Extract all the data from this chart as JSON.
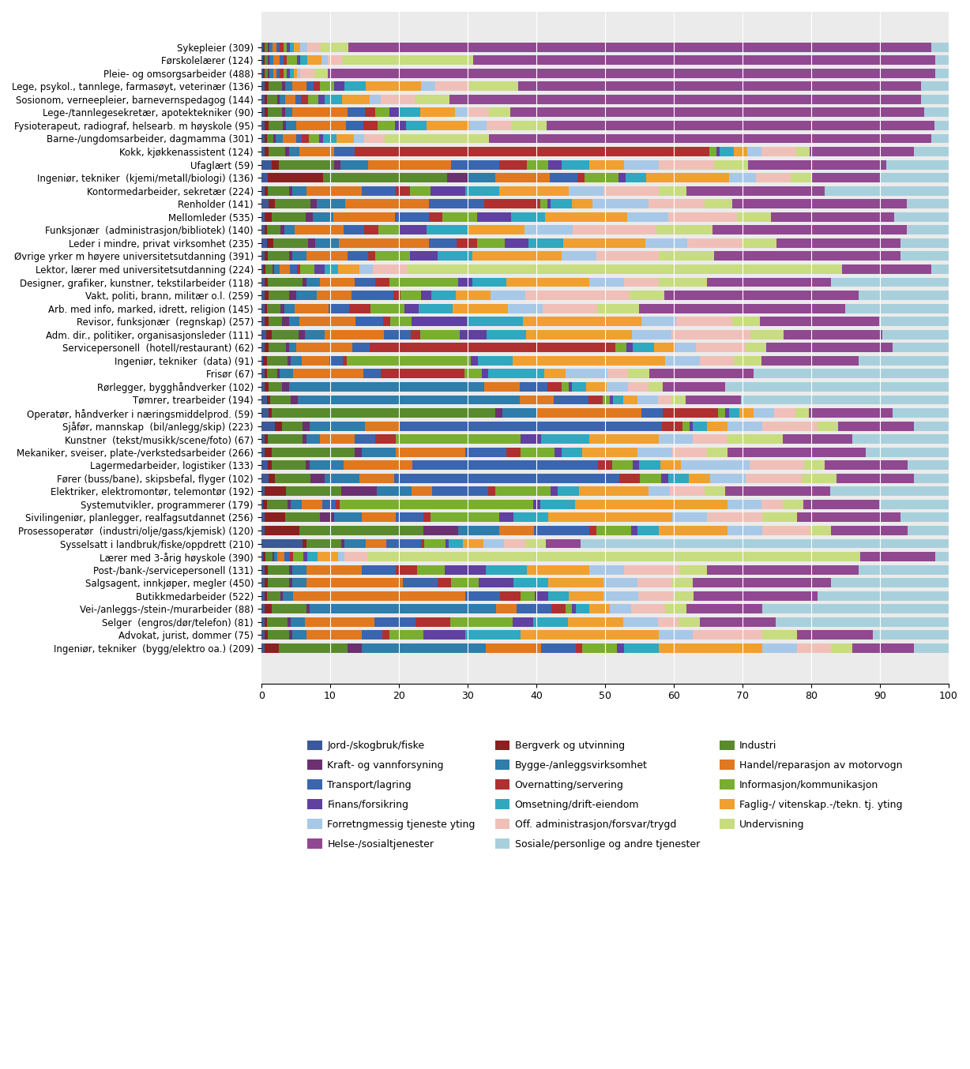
{
  "categories": [
    "Sykepleier (309)",
    "Førskolelærer (124)",
    "Pleie- og omsorgsarbeider (488)",
    "Lege, psykol., tannlege, farmasøyt, veterinær (136)",
    "Sosionom, verneepleier, barnevernspedagog (144)",
    "Lege-/tannlegesekretær, apotektekniker (90)",
    "Fysioterapeut, radiograf, helsearb. m høyskole (95)",
    "Barne-/ungdomsarbeider, dagmamma (301)",
    "Kokk, kjøkkenassistent (124)",
    "Ufaglært (59)",
    "Ingeniør, tekniker  (kjemi/metall/biologi) (136)",
    "Kontormedarbeider, sekretær (224)",
    "Renholder (141)",
    "Mellomleder (535)",
    "Funksjonær  (administrasjon/bibliotek) (140)",
    "Leder i mindre, privat virksomhet (235)",
    "Øvrige yrker m høyere universitetsutdanning (391)",
    "Lektor, lærer med universitetsutdanning (224)",
    "Designer, grafiker, kunstner, tekstilarbeider (118)",
    "Vakt, politi, brann, militær o.l. (259)",
    "Arb. med info, marked, idrett, religion (145)",
    "Revisor, funksjonær  (regnskap) (257)",
    "Adm. dir., politiker, organisasjonsleder (111)",
    "Servicepersonell  (hotell/restaurant) (62)",
    "Ingeniør, tekniker  (data) (91)",
    "Frisør (67)",
    "Rørlegger, bygghåndverker (102)",
    "Tømrer, trearbeider (194)",
    "Operatør, håndverker i næringsmiddelprod. (59)",
    "Sjåfør, mannskap  (bil/anlegg/skip) (223)",
    "Kunstner  (tekst/musikk/scene/foto) (67)",
    "Mekaniker, sveiser, plate-/verkstedsarbeider (266)",
    "Lagermedarbeider, logistiker (133)",
    "Fører (buss/bane), skipsbefal, flyger (102)",
    "Elektriker, elektromontør, telemontør (192)",
    "Systemutvikler, programmerer (179)",
    "Sivilingeniør, planlegger, realfagsutdannet (256)",
    "Prosessoperatør  (industri/olje/gass/kjemisk) (120)",
    "Sysselsatt i landbruk/fiske/oppdrett (210)",
    "Lærer med 3-årig høyskole (390)",
    "Post-/bank-/servicepersonell (131)",
    "Salgsagent, innkjøper, megler (450)",
    "Butikkmedarbeider (522)",
    "Vei-/anleggs-/stein-/murarbeider (88)",
    "Selger  (engros/dør/telefon) (81)",
    "Advokat, jurist, dommer (75)",
    "Ingeniør, tekniker  (bygg/elektro oa.) (209)"
  ],
  "sectors": [
    "Jord-/skogbruk/fiske",
    "Bergverk og utvinning",
    "Industri",
    "Kraft- og vannforsyning",
    "Bygge-/anleggsvirksomhet",
    "Handel/reparasjon av motorvogn",
    "Transport/lagring",
    "Overnatting/servering",
    "Informasjon/kommunikasjon",
    "Finans/forsikring",
    "Omsetning/drift-eiendom",
    "Faglig-/ vitenskap.-/tekn. tj. yting",
    "Forretngmessig tjeneste yting",
    "Off. administrasjon/forsvar/trygd",
    "Undervisning",
    "Helse-/sosialtjenester",
    "Sosiale/personlige og andre tjenester"
  ],
  "colors": [
    "#3B5998",
    "#8B2020",
    "#5A8A2E",
    "#6B3070",
    "#2E7DAA",
    "#E07820",
    "#3A66B0",
    "#B03030",
    "#7AAE30",
    "#6040A0",
    "#30A8C0",
    "#F0A030",
    "#A8C8E8",
    "#F0C0B8",
    "#C8DC80",
    "#904890",
    "#A8D0DC"
  ],
  "legend_order": [
    [
      0,
      3,
      6,
      9,
      12,
      15
    ],
    [
      1,
      4,
      7,
      10,
      13,
      16
    ],
    [
      2,
      5,
      8,
      11,
      14
    ]
  ],
  "data": [
    [
      0.3,
      0.2,
      0.5,
      0.2,
      0.5,
      0.5,
      0.5,
      0.5,
      0.5,
      0.5,
      0.5,
      1.0,
      1.0,
      2.0,
      4.0,
      85.0,
      2.5
    ],
    [
      0.3,
      0.2,
      0.5,
      0.2,
      0.5,
      1.0,
      0.5,
      0.5,
      1.5,
      0.5,
      1.0,
      2.0,
      1.0,
      2.0,
      19.0,
      67.0,
      2.0
    ],
    [
      0.3,
      0.2,
      0.5,
      0.2,
      0.5,
      0.5,
      0.5,
      0.5,
      0.5,
      0.5,
      0.5,
      0.5,
      0.5,
      2.0,
      2.0,
      88.0,
      2.0
    ],
    [
      0.5,
      0.5,
      2.0,
      0.5,
      1.0,
      2.0,
      1.0,
      1.0,
      2.0,
      1.5,
      3.0,
      8.0,
      2.0,
      5.0,
      7.0,
      58.0,
      4.0
    ],
    [
      0.5,
      0.3,
      1.5,
      0.3,
      0.8,
      1.5,
      0.8,
      1.0,
      1.5,
      1.0,
      2.5,
      4.0,
      1.5,
      5.0,
      5.0,
      68.0,
      4.0
    ],
    [
      0.5,
      0.5,
      2.0,
      0.5,
      1.0,
      8.0,
      2.5,
      1.5,
      2.0,
      1.5,
      3.0,
      5.0,
      2.0,
      3.0,
      3.0,
      60.0,
      3.5
    ],
    [
      0.5,
      0.5,
      2.0,
      0.5,
      1.5,
      7.0,
      2.5,
      2.0,
      2.5,
      1.5,
      3.0,
      6.0,
      2.5,
      3.5,
      5.0,
      55.0,
      2.0
    ],
    [
      0.5,
      0.3,
      1.0,
      0.3,
      1.0,
      2.0,
      0.8,
      1.0,
      1.5,
      0.5,
      2.0,
      2.5,
      1.5,
      3.0,
      15.0,
      64.0,
      2.5
    ],
    [
      0.5,
      0.5,
      2.5,
      0.5,
      1.5,
      5.0,
      3.0,
      51.0,
      1.0,
      0.5,
      2.0,
      2.0,
      2.0,
      5.0,
      2.0,
      15.0,
      5.0
    ],
    [
      1.5,
      1.0,
      8.0,
      1.0,
      4.0,
      12.0,
      7.0,
      4.0,
      3.0,
      2.0,
      4.0,
      5.0,
      5.0,
      8.0,
      5.0,
      20.0,
      9.0
    ],
    [
      1.0,
      8.0,
      18.0,
      3.0,
      4.0,
      8.0,
      4.0,
      1.0,
      5.0,
      1.0,
      3.0,
      12.0,
      4.0,
      5.0,
      3.0,
      10.0,
      10.0
    ],
    [
      0.5,
      0.5,
      3.0,
      0.5,
      2.0,
      8.0,
      5.0,
      2.0,
      3.0,
      5.0,
      5.0,
      10.0,
      5.0,
      8.0,
      4.0,
      20.0,
      18.0
    ],
    [
      1.0,
      1.0,
      5.0,
      1.0,
      4.0,
      12.0,
      8.0,
      8.0,
      1.0,
      0.5,
      3.0,
      3.0,
      8.0,
      8.0,
      4.0,
      25.0,
      6.0
    ],
    [
      0.5,
      1.0,
      5.0,
      1.0,
      3.0,
      9.0,
      5.0,
      2.0,
      5.0,
      5.0,
      5.0,
      12.0,
      6.0,
      10.0,
      5.0,
      18.0,
      8.0
    ],
    [
      0.5,
      0.3,
      2.0,
      0.5,
      1.5,
      7.0,
      3.0,
      2.0,
      3.0,
      4.0,
      6.0,
      8.0,
      7.0,
      12.0,
      8.0,
      28.0,
      6.0
    ],
    [
      0.8,
      1.0,
      5.0,
      1.0,
      3.5,
      13.0,
      4.0,
      3.0,
      4.0,
      3.5,
      5.0,
      12.0,
      6.0,
      8.0,
      5.0,
      18.0,
      7.0
    ],
    [
      0.5,
      0.5,
      3.0,
      0.5,
      2.0,
      6.0,
      3.0,
      1.0,
      5.0,
      4.0,
      5.0,
      13.0,
      5.0,
      9.0,
      8.0,
      27.0,
      7.0
    ],
    [
      0.3,
      0.3,
      1.0,
      0.3,
      0.8,
      1.5,
      1.0,
      0.5,
      2.0,
      1.5,
      2.0,
      3.0,
      2.0,
      5.0,
      63.0,
      13.0,
      2.5
    ],
    [
      0.5,
      0.5,
      5.0,
      0.5,
      2.0,
      5.0,
      3.0,
      2.0,
      10.0,
      2.0,
      5.0,
      12.0,
      5.0,
      5.0,
      7.0,
      18.0,
      17.0
    ],
    [
      0.5,
      0.5,
      3.0,
      1.0,
      3.0,
      5.0,
      6.0,
      1.0,
      3.0,
      1.5,
      3.5,
      5.0,
      5.0,
      15.0,
      5.0,
      28.0,
      13.0
    ],
    [
      0.5,
      0.3,
      2.0,
      0.5,
      1.5,
      5.0,
      3.0,
      3.0,
      5.0,
      2.0,
      5.0,
      8.0,
      5.0,
      8.0,
      6.0,
      30.0,
      15.0
    ],
    [
      0.5,
      0.5,
      2.0,
      1.0,
      1.5,
      8.0,
      4.0,
      1.0,
      3.0,
      8.0,
      8.0,
      17.0,
      5.0,
      8.0,
      4.0,
      17.0,
      10.0
    ],
    [
      0.8,
      0.8,
      4.0,
      1.0,
      3.0,
      9.0,
      4.0,
      1.5,
      6.0,
      4.0,
      6.0,
      16.0,
      6.0,
      12.0,
      5.0,
      15.0,
      10.0
    ],
    [
      0.5,
      0.5,
      2.5,
      0.5,
      1.0,
      8.0,
      2.5,
      35.0,
      1.5,
      1.0,
      3.0,
      3.0,
      3.0,
      7.0,
      3.0,
      18.0,
      8.0
    ],
    [
      0.3,
      0.5,
      3.0,
      0.5,
      1.5,
      4.0,
      2.0,
      0.5,
      18.0,
      1.0,
      5.0,
      22.0,
      5.0,
      5.0,
      4.0,
      14.0,
      13.0
    ],
    [
      0.5,
      0.3,
      1.5,
      0.3,
      2.0,
      10.0,
      2.5,
      12.0,
      2.5,
      1.0,
      8.0,
      3.0,
      6.0,
      3.0,
      3.0,
      15.0,
      28.0
    ],
    [
      0.5,
      0.5,
      2.0,
      1.0,
      28.0,
      5.0,
      4.0,
      2.0,
      1.0,
      0.5,
      2.0,
      3.0,
      3.0,
      3.0,
      2.0,
      9.0,
      32.0
    ],
    [
      0.8,
      0.5,
      3.0,
      1.0,
      32.0,
      5.0,
      5.0,
      2.0,
      1.0,
      0.5,
      1.5,
      2.0,
      3.0,
      2.0,
      2.0,
      8.0,
      30.0
    ],
    [
      1.0,
      0.5,
      32.0,
      1.0,
      5.0,
      15.0,
      3.0,
      8.0,
      1.0,
      0.5,
      1.5,
      2.0,
      3.0,
      3.0,
      2.0,
      12.0,
      8.0
    ],
    [
      2.0,
      1.0,
      3.0,
      1.0,
      8.0,
      5.0,
      38.0,
      3.0,
      1.0,
      0.5,
      2.0,
      3.0,
      5.0,
      8.0,
      3.0,
      11.0,
      5.0
    ],
    [
      0.5,
      0.5,
      5.0,
      0.5,
      2.0,
      5.0,
      3.0,
      3.0,
      18.0,
      3.0,
      7.0,
      10.0,
      5.0,
      5.0,
      8.0,
      10.0,
      14.0
    ],
    [
      0.5,
      1.0,
      12.0,
      1.0,
      5.0,
      10.0,
      6.0,
      2.0,
      5.0,
      1.0,
      3.0,
      8.0,
      5.0,
      5.0,
      3.0,
      20.0,
      12.0
    ],
    [
      1.0,
      0.5,
      5.0,
      0.5,
      5.0,
      10.0,
      27.0,
      2.0,
      3.0,
      1.0,
      3.0,
      3.0,
      10.0,
      8.0,
      3.0,
      12.0,
      6.0
    ],
    [
      1.0,
      1.0,
      5.0,
      2.0,
      5.0,
      5.0,
      32.0,
      3.0,
      3.0,
      1.0,
      3.0,
      3.0,
      5.0,
      8.0,
      5.0,
      11.0,
      5.0
    ],
    [
      0.5,
      3.0,
      8.0,
      5.0,
      5.0,
      3.0,
      8.0,
      1.0,
      8.0,
      1.0,
      3.0,
      10.0,
      3.0,
      5.0,
      3.0,
      15.0,
      17.0
    ],
    [
      0.3,
      0.5,
      3.0,
      0.5,
      1.5,
      3.0,
      2.0,
      0.5,
      28.0,
      1.0,
      5.0,
      22.0,
      5.0,
      3.0,
      3.0,
      11.0,
      10.0
    ],
    [
      0.5,
      3.0,
      5.0,
      2.0,
      4.0,
      5.0,
      4.0,
      1.0,
      10.0,
      2.0,
      5.0,
      18.0,
      5.0,
      8.0,
      5.0,
      15.0,
      7.0
    ],
    [
      0.5,
      5.0,
      18.0,
      5.0,
      6.0,
      5.0,
      8.0,
      1.0,
      5.0,
      1.0,
      3.0,
      10.0,
      5.0,
      7.0,
      3.0,
      11.0,
      6.0
    ],
    [
      6.0,
      0.5,
      5.0,
      0.5,
      3.0,
      3.0,
      5.0,
      0.5,
      3.0,
      0.5,
      2.0,
      3.0,
      3.0,
      3.0,
      3.0,
      5.0,
      53.0
    ],
    [
      0.3,
      0.3,
      1.0,
      0.3,
      0.5,
      1.0,
      0.8,
      0.5,
      1.5,
      0.5,
      1.5,
      3.0,
      1.0,
      3.5,
      72.0,
      11.0,
      2.0
    ],
    [
      0.5,
      0.5,
      3.0,
      0.5,
      2.0,
      8.0,
      5.0,
      3.0,
      4.0,
      6.0,
      6.0,
      9.0,
      5.0,
      8.0,
      4.0,
      22.0,
      13.0
    ],
    [
      0.5,
      0.5,
      3.0,
      0.5,
      2.0,
      14.0,
      5.0,
      2.0,
      4.0,
      5.0,
      5.0,
      8.0,
      5.0,
      5.0,
      3.0,
      20.0,
      17.0
    ],
    [
      0.5,
      0.3,
      2.0,
      0.3,
      1.5,
      25.0,
      5.0,
      3.0,
      2.0,
      2.0,
      3.0,
      5.0,
      5.0,
      5.0,
      3.0,
      18.0,
      19.0
    ],
    [
      0.5,
      1.0,
      5.0,
      0.5,
      27.0,
      3.0,
      5.0,
      2.0,
      1.0,
      0.5,
      2.0,
      3.0,
      3.0,
      5.0,
      3.0,
      11.0,
      27.0
    ],
    [
      0.5,
      0.3,
      3.0,
      0.5,
      2.0,
      10.0,
      6.0,
      5.0,
      9.0,
      3.0,
      5.0,
      8.0,
      5.0,
      3.0,
      3.0,
      11.0,
      25.0
    ],
    [
      0.5,
      0.5,
      3.0,
      0.5,
      2.0,
      8.0,
      3.0,
      1.0,
      5.0,
      6.0,
      8.0,
      20.0,
      5.0,
      10.0,
      5.0,
      11.0,
      11.0
    ],
    [
      0.5,
      2.0,
      10.0,
      2.0,
      18.0,
      8.0,
      5.0,
      1.0,
      5.0,
      1.0,
      5.0,
      15.0,
      5.0,
      5.0,
      3.0,
      9.0,
      5.0
    ]
  ]
}
